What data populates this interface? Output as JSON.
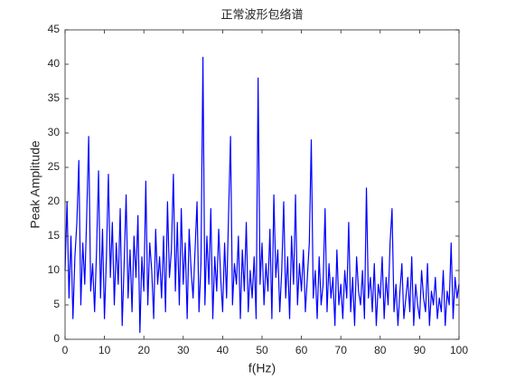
{
  "chart_data": {
    "type": "line",
    "title": "正常波形包络谱",
    "x_label": "f(Hz)",
    "y_label": "Peak Amplitude",
    "color": "#0000ff",
    "x": [
      0,
      0.5,
      1,
      1.5,
      2,
      2.5,
      3,
      3.5,
      4,
      4.5,
      5,
      5.5,
      6,
      6.5,
      7,
      7.5,
      8,
      8.5,
      9,
      9.5,
      10,
      10.5,
      11,
      11.5,
      12,
      12.5,
      13,
      13.5,
      14,
      14.5,
      15,
      15.5,
      16,
      16.5,
      17,
      17.5,
      18,
      18.5,
      19,
      19.5,
      20,
      20.5,
      21,
      21.5,
      22,
      22.5,
      23,
      23.5,
      24,
      24.5,
      25,
      25.5,
      26,
      26.5,
      27,
      27.5,
      28,
      28.5,
      29,
      29.5,
      30,
      30.5,
      31,
      31.5,
      32,
      32.5,
      33,
      33.5,
      34,
      34.5,
      35,
      35.5,
      36,
      36.5,
      37,
      37.5,
      38,
      38.5,
      39,
      39.5,
      40,
      40.5,
      41,
      41.5,
      42,
      42.5,
      43,
      43.5,
      44,
      44.5,
      45,
      45.5,
      46,
      46.5,
      47,
      47.5,
      48,
      48.5,
      49,
      49.5,
      50,
      50.5,
      51,
      51.5,
      52,
      52.5,
      53,
      53.5,
      54,
      54.5,
      55,
      55.5,
      56,
      56.5,
      57,
      57.5,
      58,
      58.5,
      59,
      59.5,
      60,
      60.5,
      61,
      61.5,
      62,
      62.5,
      63,
      63.5,
      64,
      64.5,
      65,
      65.5,
      66,
      66.5,
      67,
      67.5,
      68,
      68.5,
      69,
      69.5,
      70,
      70.5,
      71,
      71.5,
      72,
      72.5,
      73,
      73.5,
      74,
      74.5,
      75,
      75.5,
      76,
      76.5,
      77,
      77.5,
      78,
      78.5,
      79,
      79.5,
      80,
      80.5,
      81,
      81.5,
      82,
      82.5,
      83,
      83.5,
      84,
      84.5,
      85,
      85.5,
      86,
      86.5,
      87,
      87.5,
      88,
      88.5,
      89,
      89.5,
      90,
      90.5,
      91,
      91.5,
      92,
      92.5,
      93,
      93.5,
      94,
      94.5,
      95,
      95.5,
      96,
      96.5,
      97,
      97.5,
      98,
      98.5,
      99,
      99.5,
      100
    ],
    "values": [
      10,
      20,
      6,
      15,
      3,
      12,
      17,
      26,
      5,
      14,
      8,
      18,
      29.5,
      7,
      11,
      4,
      13,
      24.5,
      6,
      16,
      3,
      12,
      24,
      9,
      17,
      5,
      14,
      8,
      19,
      2,
      11,
      21,
      6,
      13,
      4,
      15,
      9,
      18,
      1,
      12,
      7,
      23,
      5,
      14,
      10,
      3,
      16,
      8,
      12,
      6,
      15,
      4,
      20,
      9,
      13,
      24,
      7,
      17,
      5,
      19,
      8,
      14,
      3,
      16,
      10,
      6,
      13,
      20,
      4,
      11,
      41,
      5,
      15,
      8,
      19,
      3,
      12,
      7,
      16,
      9,
      4,
      14,
      6,
      18,
      29.5,
      5,
      11,
      8,
      15,
      3,
      13,
      7,
      17,
      4,
      10,
      6,
      12,
      3,
      38,
      8,
      14,
      5,
      11,
      7,
      16,
      3,
      21,
      9,
      13,
      4,
      10,
      20,
      6,
      12,
      3,
      15,
      8,
      21,
      5,
      11,
      7,
      13,
      4,
      9,
      14,
      29,
      6,
      10,
      3,
      12,
      5,
      8,
      19,
      4,
      11,
      6,
      9,
      2,
      13,
      5,
      8,
      3,
      10,
      6,
      17,
      4,
      9,
      2,
      12,
      7,
      5,
      10,
      3,
      22,
      6,
      9,
      4,
      11,
      2,
      8,
      6,
      12,
      3,
      9,
      5,
      14,
      19,
      4,
      8,
      2,
      7,
      11,
      3,
      6,
      9,
      4,
      12,
      2,
      8,
      5,
      3,
      10,
      6,
      4,
      11,
      2,
      7,
      5,
      9,
      3,
      6,
      4,
      10,
      2,
      7,
      5,
      14,
      3,
      9,
      6,
      8
    ],
    "xlim": [
      0,
      100
    ],
    "xticks": [
      0,
      10,
      20,
      30,
      40,
      50,
      60,
      70,
      80,
      90,
      100
    ],
    "ylim": [
      0,
      45
    ],
    "yticks": [
      0,
      5,
      10,
      15,
      20,
      25,
      30,
      35,
      40,
      45
    ],
    "grid": false
  }
}
